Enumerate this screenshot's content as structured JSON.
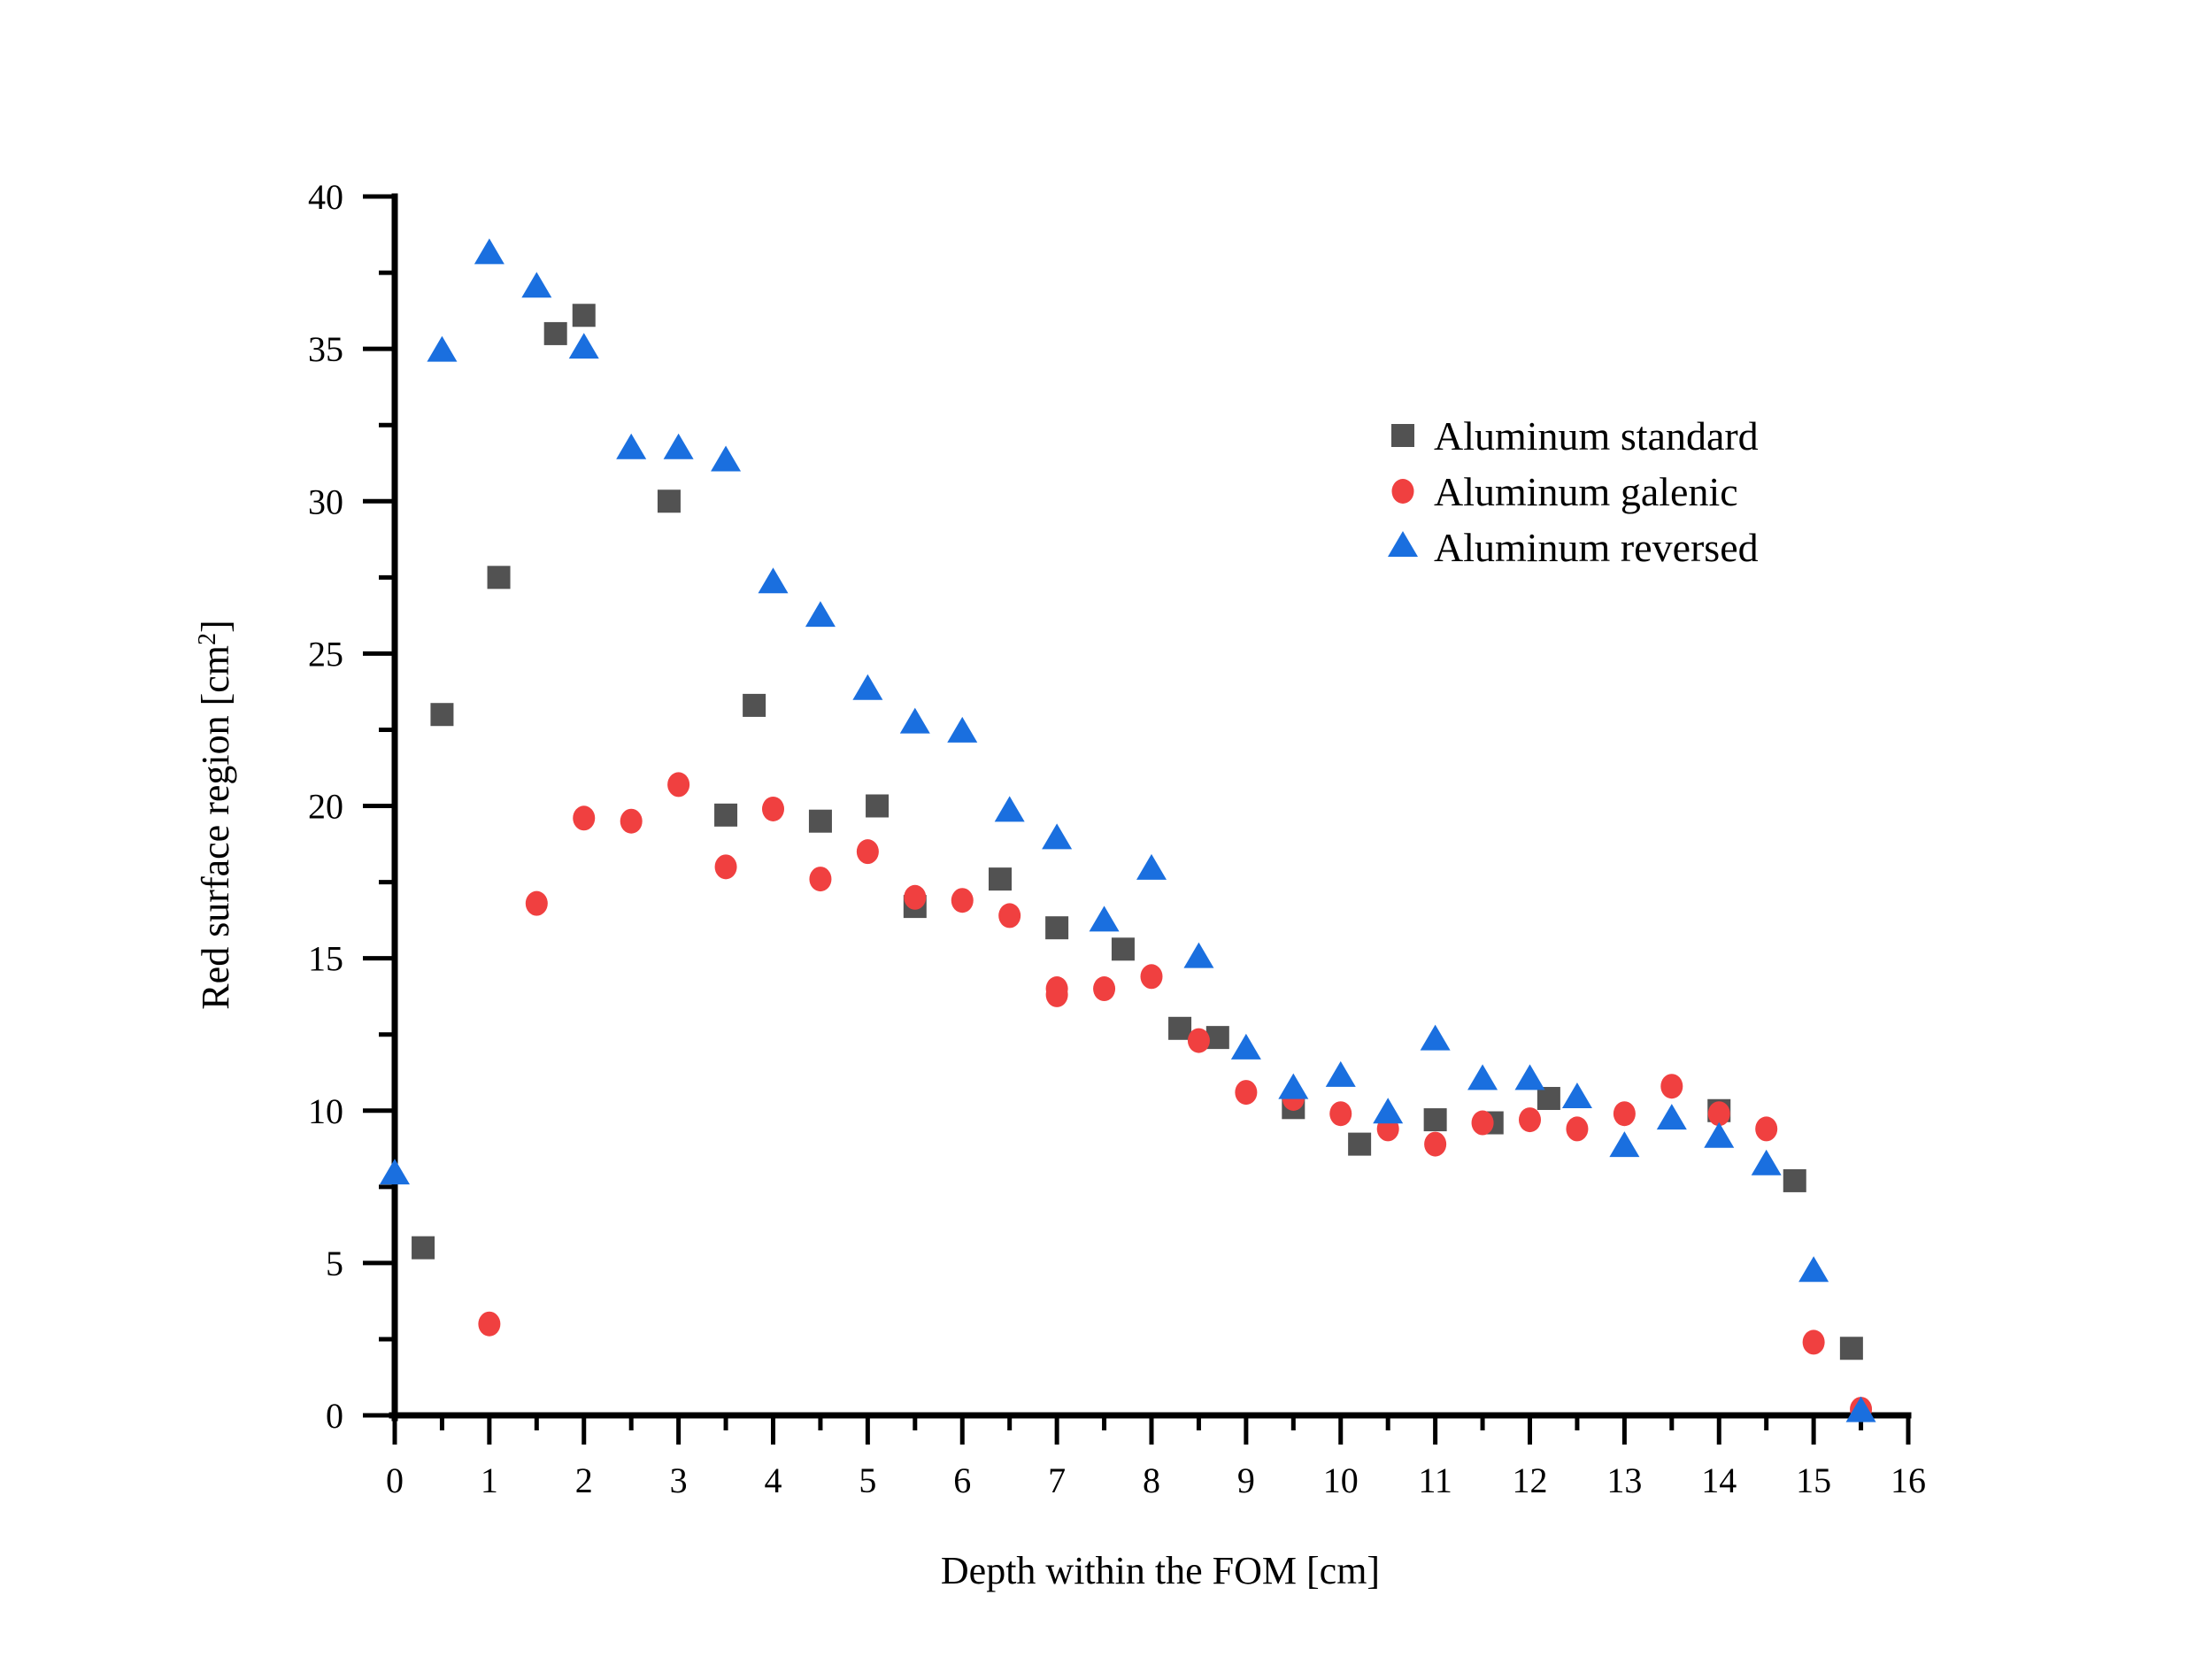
{
  "chart_data": {
    "type": "scatter",
    "title": "",
    "xlabel": "Depth within the FOM [cm]",
    "ylabel": "Red surface region [cm",
    "ylabel_superscript": "2",
    "ylabel_suffix": "]",
    "xlim": [
      0,
      16
    ],
    "ylim": [
      0,
      40
    ],
    "x_ticks": [
      0,
      1,
      2,
      3,
      4,
      5,
      6,
      7,
      8,
      9,
      10,
      11,
      12,
      13,
      14,
      15,
      16
    ],
    "x_tick_labels": [
      "0",
      "1",
      "2",
      "3",
      "4",
      "5",
      "6",
      "7",
      "8",
      "9",
      "10",
      "11",
      "12",
      "13",
      "14",
      "15",
      "16"
    ],
    "x_minor_step": 0.5,
    "y_ticks": [
      0,
      5,
      10,
      15,
      20,
      25,
      30,
      35,
      40
    ],
    "y_tick_labels": [
      "0",
      "5",
      "10",
      "15",
      "20",
      "25",
      "30",
      "35",
      "40"
    ],
    "y_minor_step": 2.5,
    "grid": false,
    "legend_position": "top-right",
    "series": [
      {
        "name": "Aluminum standard",
        "marker": "square",
        "color": "#525252",
        "points": [
          [
            0.3,
            5.5
          ],
          [
            0.5,
            23.0
          ],
          [
            1.1,
            27.5
          ],
          [
            1.7,
            35.5
          ],
          [
            2.0,
            36.1
          ],
          [
            2.9,
            30.0
          ],
          [
            3.5,
            19.7
          ],
          [
            3.8,
            23.3
          ],
          [
            4.5,
            19.5
          ],
          [
            5.1,
            20.0
          ],
          [
            5.5,
            16.7
          ],
          [
            6.4,
            17.6
          ],
          [
            7.0,
            16.0
          ],
          [
            7.7,
            15.3
          ],
          [
            8.3,
            12.7
          ],
          [
            8.7,
            12.4
          ],
          [
            9.5,
            10.1
          ],
          [
            10.2,
            8.9
          ],
          [
            11.0,
            9.7
          ],
          [
            11.6,
            9.6
          ],
          [
            12.2,
            10.4
          ],
          [
            14.0,
            10.0
          ],
          [
            14.8,
            7.7
          ],
          [
            15.4,
            2.2
          ]
        ]
      },
      {
        "name": "Aluminum galenic",
        "marker": "circle",
        "color": "#f04040",
        "points": [
          [
            1.0,
            3.0
          ],
          [
            1.5,
            16.8
          ],
          [
            2.0,
            19.6
          ],
          [
            2.5,
            19.5
          ],
          [
            3.0,
            20.7
          ],
          [
            3.5,
            18.0
          ],
          [
            4.0,
            19.9
          ],
          [
            4.5,
            17.6
          ],
          [
            5.0,
            18.5
          ],
          [
            5.5,
            17.0
          ],
          [
            6.0,
            16.9
          ],
          [
            6.5,
            16.4
          ],
          [
            7.0,
            14.0
          ],
          [
            7.0,
            13.8
          ],
          [
            7.5,
            14.0
          ],
          [
            8.0,
            14.4
          ],
          [
            8.5,
            12.3
          ],
          [
            9.0,
            10.6
          ],
          [
            9.5,
            10.4
          ],
          [
            10.0,
            9.9
          ],
          [
            10.5,
            9.4
          ],
          [
            11.0,
            8.9
          ],
          [
            11.5,
            9.6
          ],
          [
            12.0,
            9.7
          ],
          [
            12.5,
            9.4
          ],
          [
            13.0,
            9.9
          ],
          [
            13.5,
            10.8
          ],
          [
            14.0,
            9.9
          ],
          [
            14.5,
            9.4
          ],
          [
            15.0,
            2.4
          ],
          [
            15.5,
            0.2
          ]
        ]
      },
      {
        "name": "Aluminum reversed",
        "marker": "triangle",
        "color": "#1a6fdf",
        "points": [
          [
            0.0,
            7.9
          ],
          [
            0.5,
            34.9
          ],
          [
            1.0,
            38.1
          ],
          [
            1.5,
            37.0
          ],
          [
            2.0,
            35.0
          ],
          [
            2.5,
            31.7
          ],
          [
            3.0,
            31.7
          ],
          [
            3.5,
            31.3
          ],
          [
            4.0,
            27.3
          ],
          [
            4.5,
            26.2
          ],
          [
            5.0,
            23.8
          ],
          [
            5.5,
            22.7
          ],
          [
            6.0,
            22.4
          ],
          [
            6.5,
            19.8
          ],
          [
            7.0,
            18.9
          ],
          [
            7.5,
            16.2
          ],
          [
            8.0,
            17.9
          ],
          [
            8.5,
            15.0
          ],
          [
            9.0,
            12.0
          ],
          [
            9.5,
            10.7
          ],
          [
            10.0,
            11.1
          ],
          [
            10.5,
            9.9
          ],
          [
            11.0,
            12.3
          ],
          [
            11.5,
            11.0
          ],
          [
            12.0,
            11.0
          ],
          [
            12.5,
            10.4
          ],
          [
            13.0,
            8.8
          ],
          [
            13.5,
            9.7
          ],
          [
            14.0,
            9.1
          ],
          [
            14.5,
            8.2
          ],
          [
            15.0,
            4.7
          ],
          [
            15.5,
            0.1
          ]
        ]
      }
    ]
  }
}
